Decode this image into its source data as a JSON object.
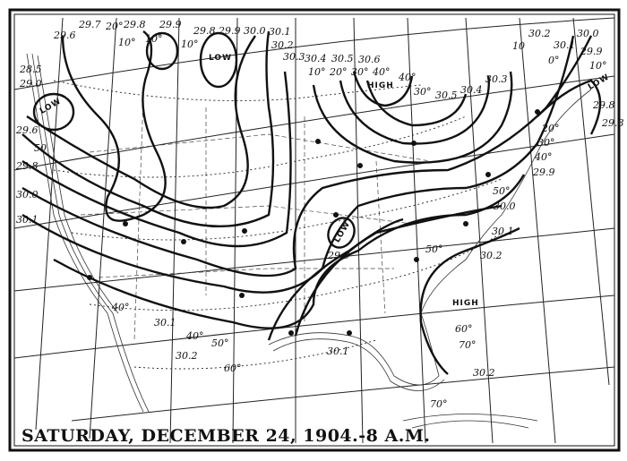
{
  "title": "SATURDAY, DECEMBER 24, 1904.-8 A.M.",
  "pressure_centers": {
    "low_north": "LOW",
    "low_northwest": "LOW",
    "low_central": "LOW",
    "high_north": "HIGH",
    "high_southeast": "HIGH",
    "low_northeast": "LOW"
  },
  "isobar_labels": {
    "top": [
      "29.6",
      "29.7",
      "29.8",
      "29.9",
      "29.8",
      "29.9",
      "30.0",
      "30.1",
      "30.2",
      "30.3",
      "30.4",
      "30.5",
      "30.6"
    ],
    "top_right": [
      "30.5",
      "30.4",
      "30.3",
      "30.2",
      "30.1",
      "30.0",
      "29.9",
      "29.8"
    ],
    "right": [
      "29.8",
      "29.9",
      "30.0",
      "30.1",
      "30.2",
      "30.2"
    ],
    "left": [
      "28.5",
      "29.0",
      "29.6",
      "29.8",
      "30.0",
      "30.1"
    ],
    "central": [
      "29.9",
      "30.1",
      "30.1",
      "30.2"
    ]
  },
  "isotherm_labels": {
    "top": [
      "20°",
      "10°",
      "10°",
      "10°",
      "10°",
      "20°",
      "30°",
      "40°",
      "40°",
      "30°",
      "10",
      "0°",
      "10°"
    ],
    "right": [
      "20°",
      "30°",
      "40°",
      "50°",
      "60°",
      "70°",
      "70°"
    ],
    "left": [
      "50"
    ],
    "central": [
      "40°",
      "40°",
      "50°",
      "60°",
      "50°"
    ]
  }
}
